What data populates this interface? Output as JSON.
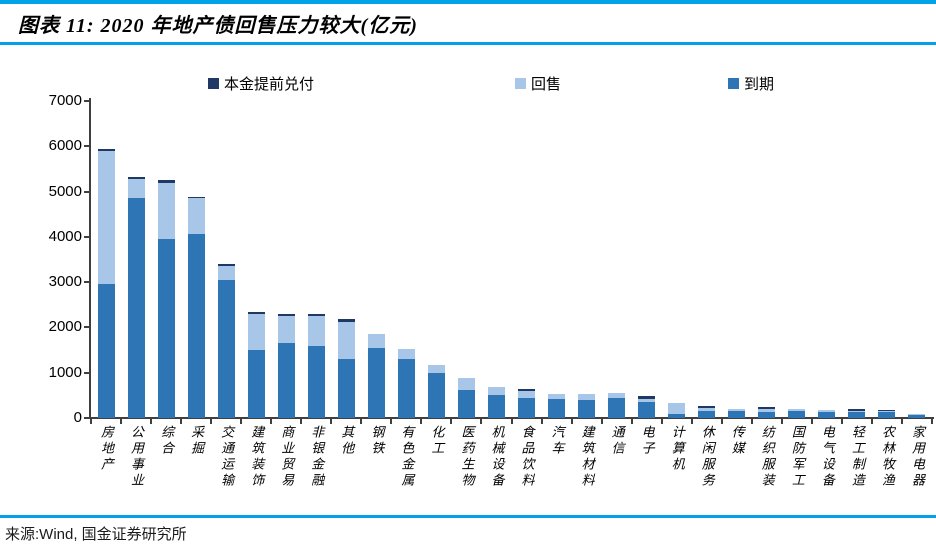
{
  "header": {
    "title": "图表 11: 2020 年地产债回售压力较大(亿元)"
  },
  "footer": {
    "source": "来源:Wind, 国金证券研究所"
  },
  "colors": {
    "frame_blue": "#00A2E8",
    "early_redemption": "#1F3864",
    "put_back": "#A7C6E8",
    "maturity": "#2E75B5",
    "axis": "#3F3F3F"
  },
  "chart_data": {
    "type": "bar",
    "stacked": true,
    "title": "图表 11: 2020 年地产债回售压力较大(亿元)",
    "unit": "亿元",
    "xlabel": "",
    "ylabel": "",
    "ylim": [
      0,
      7000
    ],
    "y_ticks": [
      0,
      1000,
      2000,
      3000,
      4000,
      5000,
      6000,
      7000
    ],
    "grid": false,
    "legend_position": "top",
    "categories": [
      "房地产",
      "公用事业",
      "综合",
      "采掘",
      "交通运输",
      "建筑装饰",
      "商业贸易",
      "非银金融",
      "其他",
      "钢铁",
      "有色金属",
      "化工",
      "医药生物",
      "机械设备",
      "食品饮料",
      "汽车",
      "建筑材料",
      "通信",
      "电子",
      "计算机",
      "休闲服务",
      "传媒",
      "纺织服装",
      "国防军工",
      "电气设备",
      "轻工制造",
      "农林牧渔",
      "家用电器"
    ],
    "series": [
      {
        "name": "本金提前兑付",
        "color_key": "early_redemption",
        "values": [
          60,
          50,
          50,
          30,
          40,
          50,
          40,
          50,
          50,
          0,
          0,
          0,
          0,
          0,
          55,
          0,
          0,
          0,
          55,
          0,
          50,
          0,
          50,
          0,
          0,
          45,
          40,
          0
        ]
      },
      {
        "name": "回售",
        "color_key": "put_back",
        "values": [
          2940,
          430,
          1250,
          800,
          310,
          800,
          610,
          650,
          830,
          300,
          220,
          180,
          270,
          195,
          150,
          130,
          145,
          120,
          70,
          250,
          60,
          50,
          70,
          30,
          40,
          25,
          15,
          15
        ]
      },
      {
        "name": "到期",
        "color_key": "maturity",
        "values": [
          2950,
          4850,
          3950,
          4060,
          3050,
          1500,
          1650,
          1600,
          1300,
          1550,
          1300,
          990,
          610,
          500,
          445,
          410,
          390,
          440,
          350,
          85,
          165,
          155,
          130,
          160,
          135,
          135,
          130,
          70
        ]
      }
    ]
  }
}
